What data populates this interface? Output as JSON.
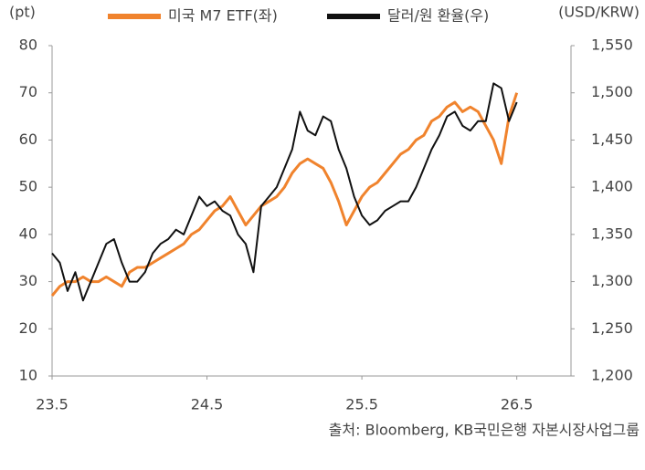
{
  "chart_data": {
    "type": "line",
    "y_axis_label": "(pt)",
    "y2_axis_label": "(USD/KRW)",
    "source": "출처: Bloomberg, KB국민은행 자본시장사업그룹",
    "x": [
      23.5,
      23.55,
      23.6,
      23.65,
      23.7,
      23.75,
      23.8,
      23.85,
      23.9,
      23.95,
      24.0,
      24.05,
      24.1,
      24.15,
      24.2,
      24.25,
      24.3,
      24.35,
      24.4,
      24.45,
      24.5,
      24.55,
      24.6,
      24.65,
      24.7,
      24.75,
      24.8,
      24.85,
      24.9,
      24.95,
      25.0,
      25.05,
      25.1,
      25.15,
      25.2,
      25.25,
      25.3,
      25.35,
      25.4,
      25.45,
      25.5,
      25.55,
      25.6,
      25.65,
      25.7,
      25.75,
      25.8,
      25.85,
      25.9,
      25.95,
      26.0,
      26.05,
      26.1,
      26.15,
      26.2,
      26.25,
      26.3,
      26.35,
      26.4,
      26.45,
      26.5
    ],
    "series": [
      {
        "name": "미국 M7 ETF(좌)",
        "color": "#f0832d",
        "axis": "y",
        "values": [
          27,
          29,
          30,
          30,
          31,
          30,
          30,
          31,
          30,
          29,
          32,
          33,
          33,
          34,
          35,
          36,
          37,
          38,
          40,
          41,
          43,
          45,
          46,
          48,
          45,
          42,
          44,
          46,
          47,
          48,
          50,
          53,
          55,
          56,
          55,
          54,
          51,
          47,
          42,
          45,
          48,
          50,
          51,
          53,
          55,
          57,
          58,
          60,
          61,
          64,
          65,
          67,
          68,
          66,
          67,
          66,
          63,
          60,
          55,
          65,
          70
        ]
      },
      {
        "name": "달러/원 환율(우)",
        "color": "#111111",
        "axis": "y2",
        "values": [
          1330,
          1320,
          1290,
          1310,
          1280,
          1300,
          1320,
          1340,
          1345,
          1320,
          1300,
          1300,
          1310,
          1330,
          1340,
          1345,
          1355,
          1350,
          1370,
          1390,
          1380,
          1385,
          1375,
          1370,
          1350,
          1340,
          1310,
          1380,
          1390,
          1400,
          1420,
          1440,
          1480,
          1460,
          1455,
          1475,
          1470,
          1440,
          1420,
          1390,
          1370,
          1360,
          1365,
          1375,
          1380,
          1385,
          1385,
          1400,
          1420,
          1440,
          1455,
          1475,
          1480,
          1465,
          1460,
          1470,
          1470,
          1510,
          1505,
          1470,
          1490
        ]
      }
    ],
    "xlim": [
      23.5,
      26.85
    ],
    "xticks": [
      23.5,
      24.5,
      25.5,
      26.5
    ],
    "ylim": [
      10,
      80
    ],
    "yticks": [
      10,
      20,
      30,
      40,
      50,
      60,
      70,
      80
    ],
    "y2lim": [
      1200,
      1550
    ],
    "y2ticks": [
      {
        "value": 1200,
        "label": "1,200"
      },
      {
        "value": 1250,
        "label": "1,250"
      },
      {
        "value": 1300,
        "label": "1,300"
      },
      {
        "value": 1350,
        "label": "1,350"
      },
      {
        "value": 1400,
        "label": "1,400"
      },
      {
        "value": 1450,
        "label": "1,450"
      },
      {
        "value": 1500,
        "label": "1,500"
      },
      {
        "value": 1550,
        "label": "1,550"
      }
    ],
    "grid": false
  }
}
